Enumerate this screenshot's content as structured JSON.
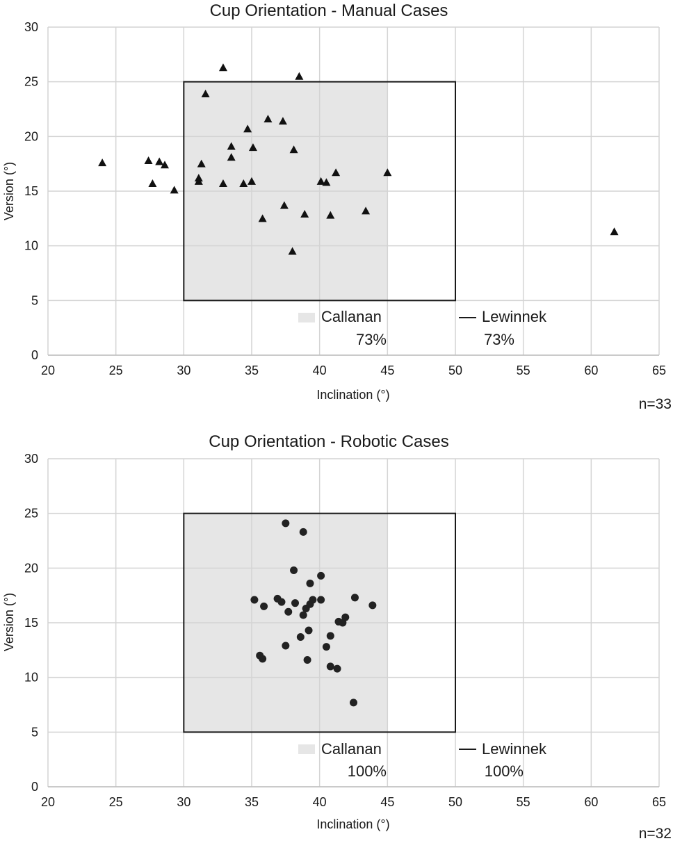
{
  "chart_data": [
    {
      "type": "scatter",
      "title": "Cup Orientation - Manual Cases",
      "xlabel": "Inclination (°)",
      "ylabel": "Version (°)",
      "xlim": [
        20,
        65
      ],
      "ylim": [
        0,
        30
      ],
      "xticks": [
        "20",
        "25",
        "30",
        "35",
        "40",
        "45",
        "50",
        "55",
        "60",
        "65"
      ],
      "yticks": [
        "0",
        "5",
        "10",
        "15",
        "20",
        "25",
        "30"
      ],
      "grid": true,
      "marker": "triangle",
      "zones": {
        "callanan": {
          "x": [
            30,
            45
          ],
          "y": [
            5,
            25
          ]
        },
        "lewinnek": {
          "x": [
            30,
            50
          ],
          "y": [
            5,
            25
          ]
        }
      },
      "legend": [
        {
          "label": "Callanan",
          "value": "73%"
        },
        {
          "label": "Lewinnek",
          "value": "73%"
        }
      ],
      "n_label": "n=33",
      "points": [
        [
          24.0,
          17.6
        ],
        [
          27.4,
          17.8
        ],
        [
          28.2,
          17.7
        ],
        [
          28.6,
          17.4
        ],
        [
          27.7,
          15.7
        ],
        [
          29.3,
          15.1
        ],
        [
          31.1,
          16.2
        ],
        [
          31.1,
          15.9
        ],
        [
          31.3,
          17.5
        ],
        [
          31.6,
          23.9
        ],
        [
          32.9,
          26.3
        ],
        [
          32.9,
          15.7
        ],
        [
          33.5,
          19.1
        ],
        [
          33.5,
          18.1
        ],
        [
          34.4,
          15.7
        ],
        [
          34.7,
          20.7
        ],
        [
          35.0,
          15.9
        ],
        [
          35.1,
          19.0
        ],
        [
          35.8,
          12.5
        ],
        [
          36.2,
          21.6
        ],
        [
          37.3,
          21.4
        ],
        [
          37.4,
          13.7
        ],
        [
          38.0,
          9.5
        ],
        [
          38.1,
          18.8
        ],
        [
          38.5,
          25.5
        ],
        [
          38.9,
          12.9
        ],
        [
          40.1,
          15.9
        ],
        [
          40.5,
          15.8
        ],
        [
          40.8,
          12.8
        ],
        [
          41.2,
          16.7
        ],
        [
          43.4,
          13.2
        ],
        [
          45.0,
          16.7
        ],
        [
          61.7,
          11.3
        ]
      ]
    },
    {
      "type": "scatter",
      "title": "Cup Orientation - Robotic Cases",
      "xlabel": "Inclination (°)",
      "ylabel": "Version (°)",
      "xlim": [
        20,
        65
      ],
      "ylim": [
        0,
        30
      ],
      "xticks": [
        "20",
        "25",
        "30",
        "35",
        "40",
        "45",
        "50",
        "55",
        "60",
        "65"
      ],
      "yticks": [
        "0",
        "5",
        "10",
        "15",
        "20",
        "25",
        "30"
      ],
      "grid": true,
      "marker": "circle",
      "zones": {
        "callanan": {
          "x": [
            30,
            45
          ],
          "y": [
            5,
            25
          ]
        },
        "lewinnek": {
          "x": [
            30,
            50
          ],
          "y": [
            5,
            25
          ]
        }
      },
      "legend": [
        {
          "label": "Callanan",
          "value": "100%"
        },
        {
          "label": "Lewinnek",
          "value": "100%"
        }
      ],
      "n_label": "n=32",
      "points": [
        [
          37.5,
          24.1
        ],
        [
          38.8,
          23.3
        ],
        [
          38.1,
          19.8
        ],
        [
          40.1,
          19.3
        ],
        [
          39.3,
          18.6
        ],
        [
          35.2,
          17.1
        ],
        [
          36.9,
          17.2
        ],
        [
          37.2,
          16.9
        ],
        [
          35.9,
          16.5
        ],
        [
          38.2,
          16.8
        ],
        [
          39.5,
          17.1
        ],
        [
          40.1,
          17.1
        ],
        [
          42.6,
          17.3
        ],
        [
          43.9,
          16.6
        ],
        [
          37.7,
          16.0
        ],
        [
          38.8,
          15.7
        ],
        [
          39.0,
          16.3
        ],
        [
          39.3,
          16.7
        ],
        [
          41.9,
          15.5
        ],
        [
          41.4,
          15.1
        ],
        [
          41.7,
          15.0
        ],
        [
          39.2,
          14.3
        ],
        [
          38.6,
          13.7
        ],
        [
          40.8,
          13.8
        ],
        [
          37.5,
          12.9
        ],
        [
          40.5,
          12.8
        ],
        [
          35.6,
          12.0
        ],
        [
          35.8,
          11.7
        ],
        [
          39.1,
          11.6
        ],
        [
          40.8,
          11.0
        ],
        [
          41.3,
          10.8
        ],
        [
          42.5,
          7.7
        ]
      ]
    }
  ]
}
